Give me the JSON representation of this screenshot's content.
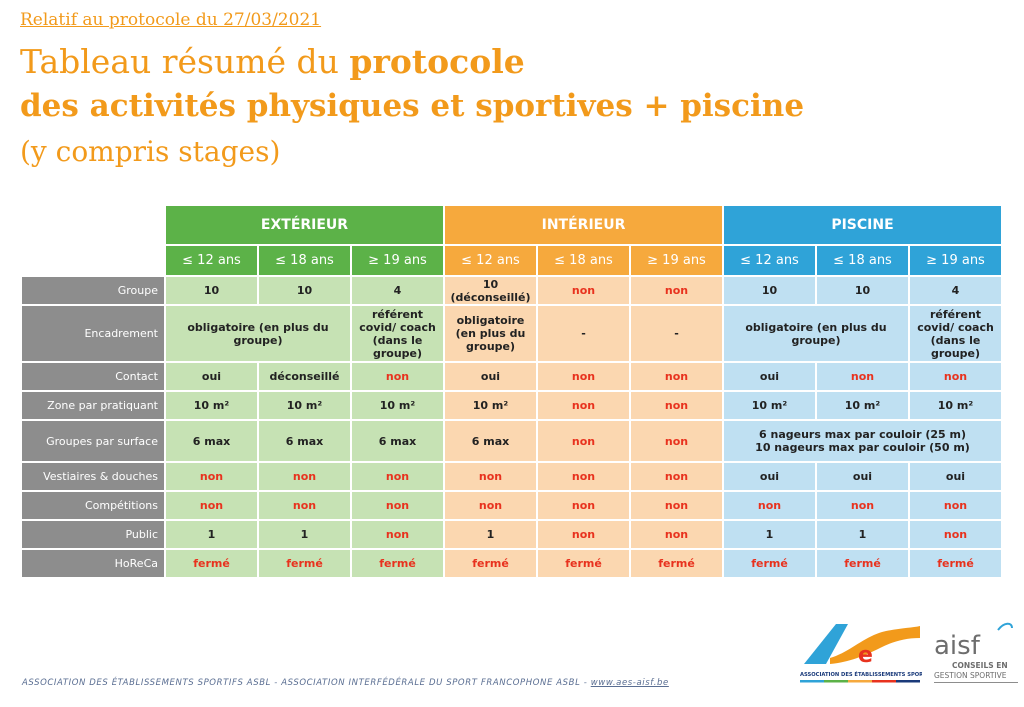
{
  "header": {
    "protocol_link": "Relatif au protocole du 27/03/2021",
    "title_line1_regular": "Tableau résumé du ",
    "title_line1_bold": "protocole",
    "title_line2": "des activités physiques et sportives + piscine",
    "title_line3": "(y compris stages)"
  },
  "table": {
    "groups": [
      "EXTÉRIEUR",
      "INTÉRIEUR",
      "PISCINE"
    ],
    "ages": [
      "≤ 12 ans",
      "≤ 18 ans",
      "≥ 19 ans"
    ],
    "rows": {
      "groupe": {
        "label": "Groupe",
        "cells": [
          "10",
          "10",
          "4",
          "10 (déconseillé)",
          "non",
          "non",
          "10",
          "10",
          "4"
        ]
      },
      "encadrement": {
        "label": "Encadrement",
        "ext_merged": "obligatoire (en plus du groupe)",
        "ext_19": "référent covid/ coach (dans le groupe)",
        "int_12": "obligatoire (en plus du groupe)",
        "int_18": "-",
        "int_19": "-",
        "pis_merged": "obligatoire (en plus du groupe)",
        "pis_19": "référent covid/ coach (dans le groupe)"
      },
      "contact": {
        "label": "Contact",
        "cells": [
          "oui",
          "déconseillé",
          "non",
          "oui",
          "non",
          "non",
          "oui",
          "non",
          "non"
        ]
      },
      "zone": {
        "label": "Zone par pratiquant",
        "cells": [
          "10 m²",
          "10 m²",
          "10 m²",
          "10 m²",
          "non",
          "non",
          "10 m²",
          "10 m²",
          "10 m²"
        ]
      },
      "surface": {
        "label": "Groupes par surface",
        "cells": [
          "6 max",
          "6 max",
          "6 max",
          "6 max",
          "non",
          "non"
        ],
        "pis_line1": "6 nageurs max par couloir (25 m)",
        "pis_line2": "10 nageurs max par couloir (50 m)"
      },
      "vestiaires": {
        "label": "Vestiaires & douches",
        "cells": [
          "non",
          "non",
          "non",
          "non",
          "non",
          "non",
          "oui",
          "oui",
          "oui"
        ]
      },
      "competitions": {
        "label": "Compétitions",
        "cells": [
          "non",
          "non",
          "non",
          "non",
          "non",
          "non",
          "non",
          "non",
          "non"
        ]
      },
      "public": {
        "label": "Public",
        "cells": [
          "1",
          "1",
          "non",
          "1",
          "non",
          "non",
          "1",
          "1",
          "non"
        ]
      },
      "horeca": {
        "label": "HoReCa",
        "cells": [
          "fermé",
          "fermé",
          "fermé",
          "fermé",
          "fermé",
          "fermé",
          "fermé",
          "fermé",
          "fermé"
        ]
      }
    }
  },
  "footer": {
    "text": "ASSOCIATION DES ÉTABLISSEMENTS SPORTIFS ASBL - ASSOCIATION INTERFÉDÉRALE DU SPORT FRANCOPHONE ASBL - ",
    "link": "www.aes-aisf.be"
  },
  "logos": {
    "aes_caption": "ASSOCIATION DES ÉTABLISSEMENTS SPORTIFS",
    "aisf_word": "aisf",
    "aisf_caption1": "CONSEILS EN",
    "aisf_caption2": "GESTION SPORTIVE"
  },
  "colors": {
    "title_orange": "#f29a1b",
    "exterieur_green": "#5cb248",
    "interieur_orange": "#f6a93d",
    "piscine_blue": "#2fa3d8",
    "non_red": "#e8321e",
    "label_grey": "#8d8d8d"
  }
}
